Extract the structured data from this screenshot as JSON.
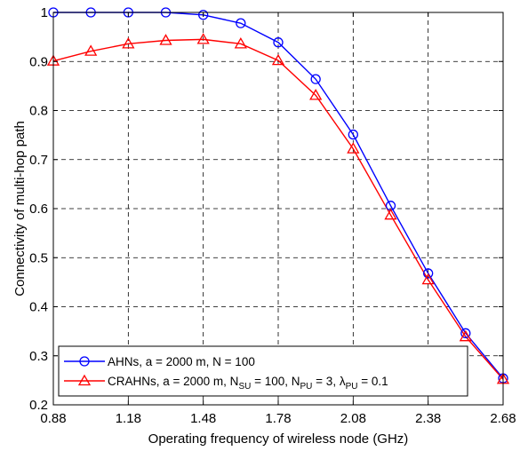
{
  "chart_data": {
    "type": "line",
    "xlabel": "Operating frequency of wireless node (GHz)",
    "ylabel": "Connectivity of multi-hop path",
    "xlim": [
      0.88,
      2.68
    ],
    "ylim": [
      0.2,
      1.0
    ],
    "x_ticks": [
      "0.88",
      "1.18",
      "1.48",
      "1.78",
      "2.08",
      "2.38",
      "2.68"
    ],
    "y_ticks": [
      "0.2",
      "0.3",
      "0.4",
      "0.5",
      "0.6",
      "0.7",
      "0.8",
      "0.9",
      "1"
    ],
    "grid": true,
    "legend_position": "bottom-left",
    "x": [
      0.88,
      1.03,
      1.18,
      1.33,
      1.48,
      1.63,
      1.78,
      1.93,
      2.08,
      2.23,
      2.38,
      2.53,
      2.68
    ],
    "series": [
      {
        "color": "#0000ff",
        "marker": "circle",
        "values": [
          1.0,
          1.0,
          1.0,
          1.0,
          0.995,
          0.978,
          0.939,
          0.864,
          0.751,
          0.606,
          0.468,
          0.346,
          0.254
        ],
        "legend": {
          "parts": [
            {
              "text": "AHNs, a = 2000 m, N = 100",
              "sub": false
            }
          ]
        }
      },
      {
        "color": "#ff0000",
        "marker": "triangle",
        "values": [
          0.901,
          0.921,
          0.936,
          0.943,
          0.945,
          0.936,
          0.902,
          0.831,
          0.722,
          0.587,
          0.455,
          0.339,
          0.252
        ],
        "legend": {
          "parts": [
            {
              "text": "CRAHNs, a = 2000 m, N",
              "sub": false
            },
            {
              "text": "SU",
              "sub": true
            },
            {
              "text": " = 100, N",
              "sub": false
            },
            {
              "text": "PU",
              "sub": true
            },
            {
              "text": " = 3, λ",
              "sub": false
            },
            {
              "text": "PU",
              "sub": true
            },
            {
              "text": " = 0.1",
              "sub": false
            }
          ]
        }
      }
    ]
  }
}
